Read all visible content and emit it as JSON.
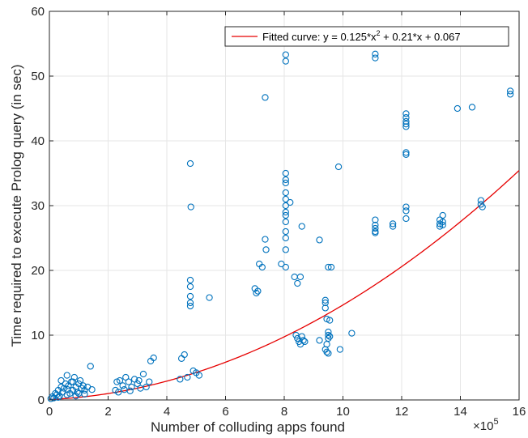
{
  "chart_data": {
    "type": "scatter",
    "title": "",
    "xlabel": "Number of colluding apps found",
    "ylabel": "Time required to execute Prolog query (in sec)",
    "x_exponent_label": "×10",
    "x_exponent_power": "5",
    "x_multiplier": 100000,
    "xlim": [
      0,
      16
    ],
    "ylim": [
      0,
      60
    ],
    "xticks": [
      0,
      2,
      4,
      6,
      8,
      10,
      12,
      14,
      16
    ],
    "yticks": [
      0,
      10,
      20,
      30,
      40,
      50,
      60
    ],
    "grid": true,
    "legend_location": "top-right",
    "colors": {
      "points": "#0072BD",
      "fit": "#e60000",
      "grid": "#e6e6e6",
      "axis": "#262626"
    },
    "series": [
      {
        "type": "scatter",
        "marker": "open-circle",
        "points": [
          [
            0.05,
            0.2
          ],
          [
            0.1,
            0.5
          ],
          [
            0.15,
            0.3
          ],
          [
            0.2,
            1.0
          ],
          [
            0.25,
            0.8
          ],
          [
            0.3,
            1.5
          ],
          [
            0.35,
            0.6
          ],
          [
            0.4,
            2.0
          ],
          [
            0.45,
            1.2
          ],
          [
            0.5,
            1.8
          ],
          [
            0.55,
            2.5
          ],
          [
            0.6,
            3.8
          ],
          [
            0.62,
            1.6
          ],
          [
            0.65,
            2.2
          ],
          [
            0.7,
            1.0
          ],
          [
            0.75,
            2.8
          ],
          [
            0.8,
            1.5
          ],
          [
            0.85,
            3.5
          ],
          [
            0.9,
            2.0
          ],
          [
            0.95,
            1.2
          ],
          [
            1.0,
            2.5
          ],
          [
            1.05,
            3.0
          ],
          [
            1.1,
            1.8
          ],
          [
            1.15,
            2.2
          ],
          [
            1.2,
            1.5
          ],
          [
            1.3,
            2.0
          ],
          [
            1.4,
            5.2
          ],
          [
            1.45,
            1.6
          ],
          [
            0.3,
            0.4
          ],
          [
            0.6,
            0.8
          ],
          [
            0.9,
            0.6
          ],
          [
            1.2,
            0.9
          ],
          [
            0.4,
            3.0
          ],
          [
            0.8,
            2.8
          ],
          [
            1.0,
            1.0
          ],
          [
            2.25,
            1.5
          ],
          [
            2.3,
            2.8
          ],
          [
            2.4,
            3.0
          ],
          [
            2.5,
            2.2
          ],
          [
            2.6,
            3.5
          ],
          [
            2.7,
            2.8
          ],
          [
            2.8,
            2.0
          ],
          [
            2.9,
            3.2
          ],
          [
            3.0,
            2.5
          ],
          [
            3.1,
            1.8
          ],
          [
            3.2,
            4.0
          ],
          [
            3.3,
            2.0
          ],
          [
            3.4,
            2.8
          ],
          [
            3.45,
            6.0
          ],
          [
            3.55,
            6.5
          ],
          [
            2.35,
            1.2
          ],
          [
            2.55,
            1.6
          ],
          [
            2.75,
            1.4
          ],
          [
            3.05,
            3.0
          ],
          [
            4.45,
            3.2
          ],
          [
            4.5,
            6.4
          ],
          [
            4.6,
            7.0
          ],
          [
            4.7,
            3.5
          ],
          [
            4.8,
            36.5
          ],
          [
            4.82,
            29.8
          ],
          [
            4.8,
            18.5
          ],
          [
            4.8,
            17.5
          ],
          [
            4.8,
            16.0
          ],
          [
            4.8,
            15.0
          ],
          [
            4.8,
            14.5
          ],
          [
            4.9,
            4.5
          ],
          [
            5.0,
            4.2
          ],
          [
            5.1,
            3.8
          ],
          [
            5.45,
            15.8
          ],
          [
            7.0,
            17.2
          ],
          [
            7.05,
            16.5
          ],
          [
            7.1,
            16.8
          ],
          [
            7.15,
            21.0
          ],
          [
            7.25,
            20.5
          ],
          [
            7.35,
            24.8
          ],
          [
            7.38,
            23.2
          ],
          [
            7.35,
            46.7
          ],
          [
            7.9,
            21.0
          ],
          [
            8.05,
            53.3
          ],
          [
            8.05,
            52.3
          ],
          [
            8.05,
            35.0
          ],
          [
            8.05,
            34.0
          ],
          [
            8.05,
            33.5
          ],
          [
            8.05,
            32.0
          ],
          [
            8.05,
            31.0
          ],
          [
            8.05,
            30.0
          ],
          [
            8.05,
            29.0
          ],
          [
            8.05,
            28.5
          ],
          [
            8.05,
            27.5
          ],
          [
            8.05,
            26.0
          ],
          [
            8.05,
            25.0
          ],
          [
            8.05,
            23.2
          ],
          [
            8.05,
            20.5
          ],
          [
            8.2,
            30.5
          ],
          [
            8.35,
            19.0
          ],
          [
            8.45,
            18.0
          ],
          [
            8.55,
            19.0
          ],
          [
            8.6,
            26.8
          ],
          [
            8.4,
            10.0
          ],
          [
            8.45,
            9.5
          ],
          [
            8.5,
            9.0
          ],
          [
            8.55,
            8.6
          ],
          [
            8.6,
            9.8
          ],
          [
            8.65,
            9.2
          ],
          [
            8.7,
            9.0
          ],
          [
            9.2,
            24.7
          ],
          [
            9.2,
            9.2
          ],
          [
            9.4,
            15.4
          ],
          [
            9.4,
            15.0
          ],
          [
            9.4,
            14.2
          ],
          [
            9.45,
            12.5
          ],
          [
            9.5,
            20.5
          ],
          [
            9.5,
            10.5
          ],
          [
            9.5,
            10.0
          ],
          [
            9.5,
            9.5
          ],
          [
            9.45,
            8.6
          ],
          [
            9.4,
            7.8
          ],
          [
            9.45,
            7.4
          ],
          [
            9.5,
            7.2
          ],
          [
            9.55,
            12.3
          ],
          [
            9.55,
            9.8
          ],
          [
            9.6,
            20.5
          ],
          [
            9.85,
            36.0
          ],
          [
            9.9,
            7.8
          ],
          [
            10.3,
            10.3
          ],
          [
            11.1,
            53.4
          ],
          [
            11.1,
            52.8
          ],
          [
            11.1,
            27.8
          ],
          [
            11.1,
            27.0
          ],
          [
            11.1,
            26.5
          ],
          [
            11.1,
            26.0
          ],
          [
            11.1,
            25.8
          ],
          [
            11.7,
            27.2
          ],
          [
            11.7,
            26.8
          ],
          [
            12.15,
            44.2
          ],
          [
            12.15,
            43.6
          ],
          [
            12.15,
            43.0
          ],
          [
            12.15,
            42.6
          ],
          [
            12.15,
            42.2
          ],
          [
            12.15,
            38.2
          ],
          [
            12.15,
            37.9
          ],
          [
            12.15,
            29.8
          ],
          [
            12.15,
            29.2
          ],
          [
            12.15,
            28.0
          ],
          [
            13.3,
            27.8
          ],
          [
            13.3,
            27.2
          ],
          [
            13.3,
            26.8
          ],
          [
            13.4,
            28.5
          ],
          [
            13.4,
            27.5
          ],
          [
            13.4,
            27.0
          ],
          [
            13.9,
            45.0
          ],
          [
            14.4,
            45.2
          ],
          [
            14.7,
            30.8
          ],
          [
            14.7,
            30.2
          ],
          [
            14.75,
            29.8
          ],
          [
            15.7,
            47.7
          ],
          [
            15.7,
            47.2
          ]
        ]
      },
      {
        "type": "line",
        "name": "Fitted curve: y = 0.125*x",
        "name_sup": "2",
        "name_tail": " + 0.21*x + 0.067",
        "fit_coefficients": [
          0.125,
          0.21,
          0.067
        ],
        "x_range": [
          0,
          16
        ]
      }
    ]
  }
}
